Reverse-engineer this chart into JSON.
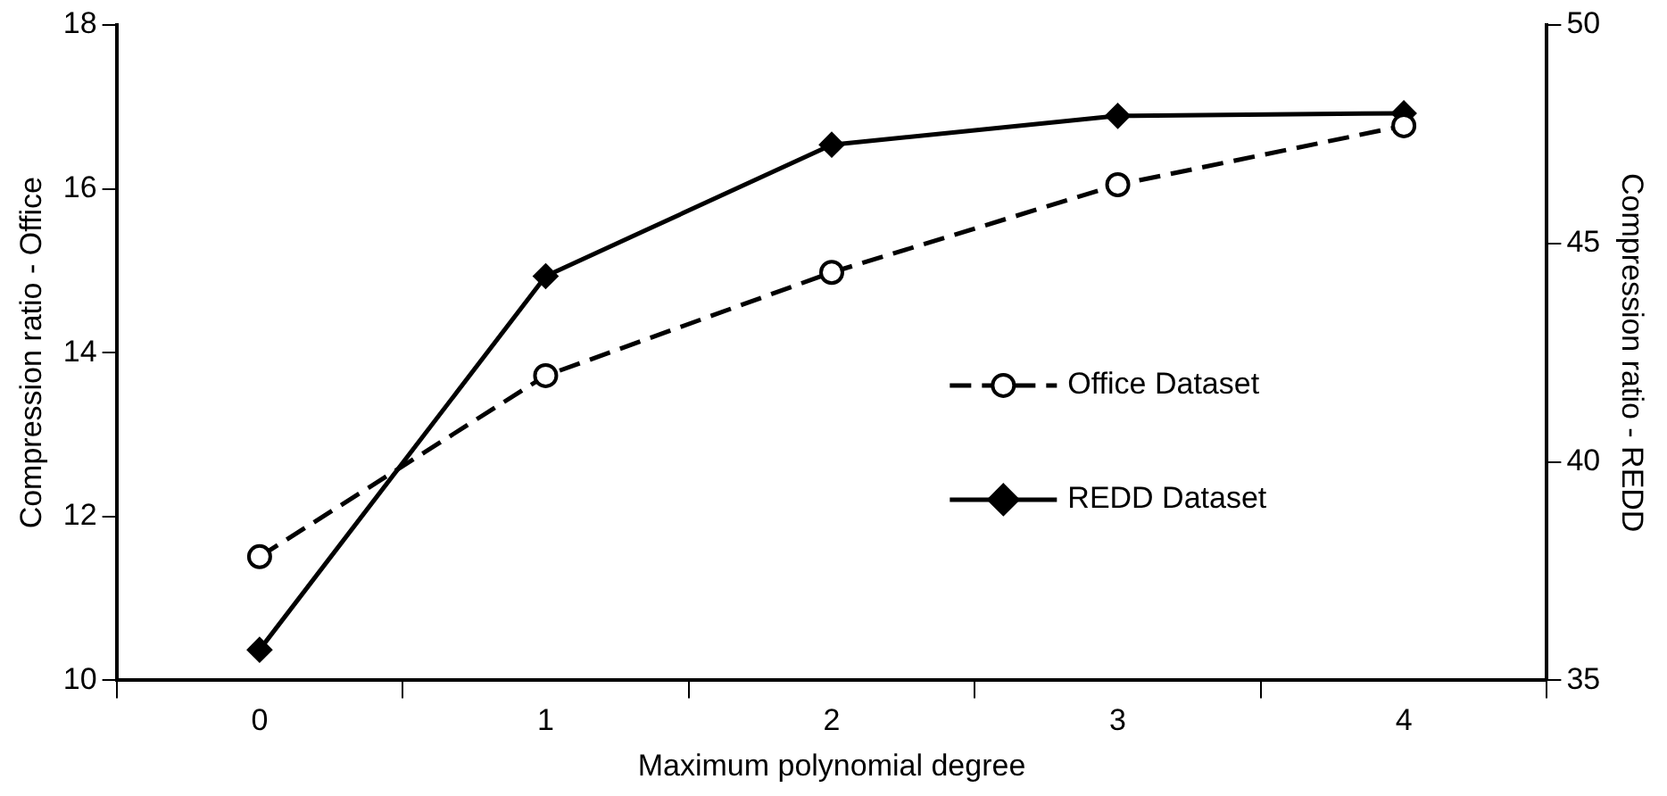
{
  "chart_data": {
    "type": "line",
    "xlabel": "Maximum polynomial degree",
    "ylabel": "Compression ratio - Office",
    "y2label": "Compression ratio - REDD",
    "categories": [
      "0",
      "1",
      "2",
      "3",
      "4"
    ],
    "series": [
      {
        "name": "Office Dataset",
        "color": "#000000",
        "values": [
          11.51,
          13.72,
          14.98,
          16.05,
          16.77
        ],
        "marker": "circle",
        "line_style": "dashed"
      },
      {
        "name": "REDD Dataset",
        "color": "#000000",
        "values": [
          35.7,
          44.25,
          47.26,
          47.92,
          47.98
        ],
        "marker": "diamond",
        "line_style": "solid",
        "axis": "y2"
      }
    ],
    "ylim": [
      10,
      18
    ],
    "yticks": [
      10,
      12,
      14,
      16,
      18
    ],
    "y2lim": [
      35,
      50
    ],
    "y2ticks": [
      35,
      40,
      45,
      50
    ],
    "grid": false,
    "legend": "right"
  }
}
